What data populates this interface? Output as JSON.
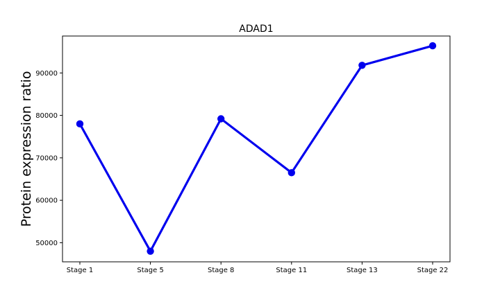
{
  "chart_data": {
    "type": "line",
    "title": "ADAD1",
    "xlabel": "",
    "ylabel": "Protein expression ratio",
    "categories": [
      "Stage 1",
      "Stage 5",
      "Stage 8",
      "Stage 11",
      "Stage 13",
      "Stage 22"
    ],
    "series": [
      {
        "values": [
          78000,
          48000,
          79200,
          66500,
          91800,
          96400
        ],
        "color": "#0000ee",
        "marker": "circle"
      }
    ],
    "ylim": [
      45500,
      98700
    ],
    "yticks": [
      50000,
      60000,
      70000,
      80000,
      90000
    ],
    "ytick_labels": [
      "50000",
      "60000",
      "70000",
      "80000",
      "90000"
    ],
    "grid": false,
    "legend": "none"
  }
}
